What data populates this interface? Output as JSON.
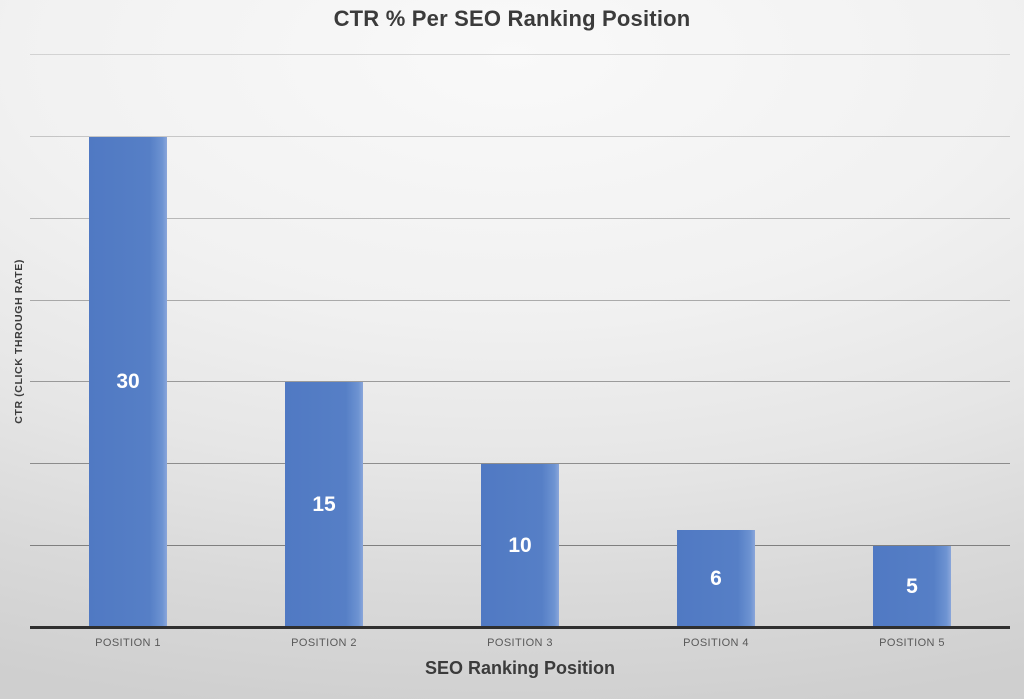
{
  "chart_data": {
    "type": "bar",
    "title": "CTR % Per SEO Ranking Position",
    "xlabel": "SEO Ranking Position",
    "ylabel": "CTR (CLICK THROUGH RATE)",
    "categories": [
      "POSITION 1",
      "POSITION 2",
      "POSITION 3",
      "POSITION 4",
      "POSITION 5"
    ],
    "values": [
      30,
      15,
      10,
      6,
      5
    ],
    "data_labels": [
      "30",
      "15",
      "10",
      "6",
      "5"
    ],
    "ylim": [
      0,
      35
    ],
    "yticks": [
      5,
      10,
      15,
      20,
      25,
      30,
      35
    ],
    "ytick_labels_visible": false,
    "grid": true,
    "legend": "none",
    "colors": {
      "bar": "#567fc6",
      "bar_label": "#ffffff",
      "gridline": "#6e6e6e",
      "axis_line": "#2f2f2f",
      "title_text": "#3b3b3b",
      "tick_label_text": "#595959"
    }
  }
}
